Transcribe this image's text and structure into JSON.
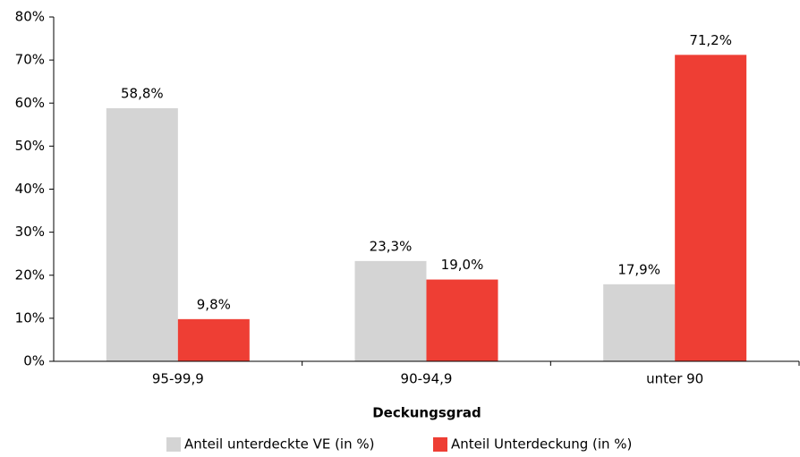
{
  "chart_data": {
    "type": "bar",
    "x_label": "Deckungsgrad",
    "categories": [
      "95-99,9",
      "90-94,9",
      "unter 90"
    ],
    "series": [
      {
        "name": "Anteil unterdeckte VE (in %)",
        "color": "#d4d4d4",
        "values": [
          58.8,
          23.3,
          17.9
        ],
        "value_labels": [
          "58,8%",
          "23,3%",
          "17,9%"
        ]
      },
      {
        "name": "Anteil Unterdeckung (in %)",
        "color": "#ee3e34",
        "values": [
          9.8,
          19.0,
          71.2
        ],
        "value_labels": [
          "9,8%",
          "19,0%",
          "71,2%"
        ]
      }
    ],
    "ylim": [
      0,
      80
    ],
    "yticks": [
      {
        "value": 0,
        "label": "0%"
      },
      {
        "value": 10,
        "label": "10%"
      },
      {
        "value": 20,
        "label": "20%"
      },
      {
        "value": 30,
        "label": "30%"
      },
      {
        "value": 40,
        "label": "40%"
      },
      {
        "value": 50,
        "label": "50%"
      },
      {
        "value": 60,
        "label": "60%"
      },
      {
        "value": 70,
        "label": "70%"
      },
      {
        "value": 80,
        "label": "80%"
      }
    ],
    "grid": false,
    "legend": "bottom"
  }
}
